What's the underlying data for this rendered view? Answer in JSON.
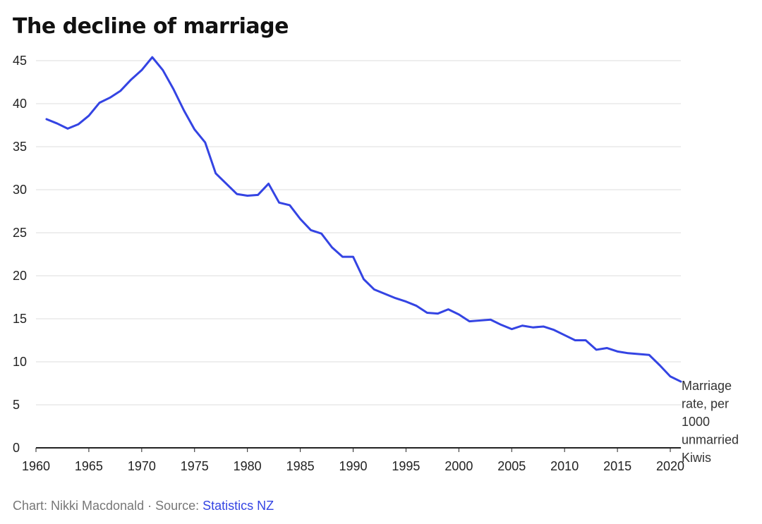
{
  "title": "The decline of marriage",
  "footer": {
    "credit": "Chart: Nikki Macdonald",
    "separator": " · ",
    "source_prefix": "Source: ",
    "source_name": "Statistics NZ"
  },
  "colors": {
    "line": "#3444e3",
    "grid": "#dddddd",
    "axis": "#222222",
    "link": "#3444e3"
  },
  "chart_data": {
    "type": "line",
    "title": "The decline of marriage",
    "xlabel": "",
    "ylabel": "",
    "xlim": [
      1960,
      2021
    ],
    "ylim": [
      0,
      45
    ],
    "xticks": [
      1960,
      1965,
      1970,
      1975,
      1980,
      1985,
      1990,
      1995,
      2000,
      2005,
      2010,
      2015,
      2020
    ],
    "yticks": [
      0,
      5,
      10,
      15,
      20,
      25,
      30,
      35,
      40,
      45
    ],
    "grid": true,
    "series": [
      {
        "name": "Marriage rate, per 1000 unmarried Kiwis",
        "label_lines": [
          "Marriage",
          "rate, per",
          "1000",
          "unmarried",
          "Kiwis"
        ],
        "x": [
          1961,
          1962,
          1963,
          1964,
          1965,
          1966,
          1967,
          1968,
          1969,
          1970,
          1971,
          1972,
          1973,
          1974,
          1975,
          1976,
          1977,
          1978,
          1979,
          1980,
          1981,
          1982,
          1983,
          1984,
          1985,
          1986,
          1987,
          1988,
          1989,
          1990,
          1991,
          1992,
          1993,
          1994,
          1995,
          1996,
          1997,
          1998,
          1999,
          2000,
          2001,
          2002,
          2003,
          2004,
          2005,
          2006,
          2007,
          2008,
          2009,
          2010,
          2011,
          2012,
          2013,
          2014,
          2015,
          2016,
          2017,
          2018,
          2019,
          2020,
          2021
        ],
        "y": [
          38.2,
          37.7,
          37.1,
          37.6,
          38.6,
          40.1,
          40.7,
          41.5,
          42.8,
          43.9,
          45.4,
          43.9,
          41.7,
          39.2,
          37.0,
          35.5,
          31.9,
          30.7,
          29.5,
          29.3,
          29.4,
          30.7,
          28.5,
          28.2,
          26.6,
          25.3,
          24.9,
          23.3,
          22.2,
          22.2,
          19.6,
          18.4,
          17.9,
          17.4,
          17.0,
          16.5,
          15.7,
          15.6,
          16.1,
          15.5,
          14.7,
          14.8,
          14.9,
          14.3,
          13.8,
          14.2,
          14.0,
          14.1,
          13.7,
          13.1,
          12.5,
          12.5,
          11.4,
          11.6,
          11.2,
          11.0,
          10.9,
          10.8,
          9.6,
          8.3,
          7.7
        ]
      }
    ]
  }
}
